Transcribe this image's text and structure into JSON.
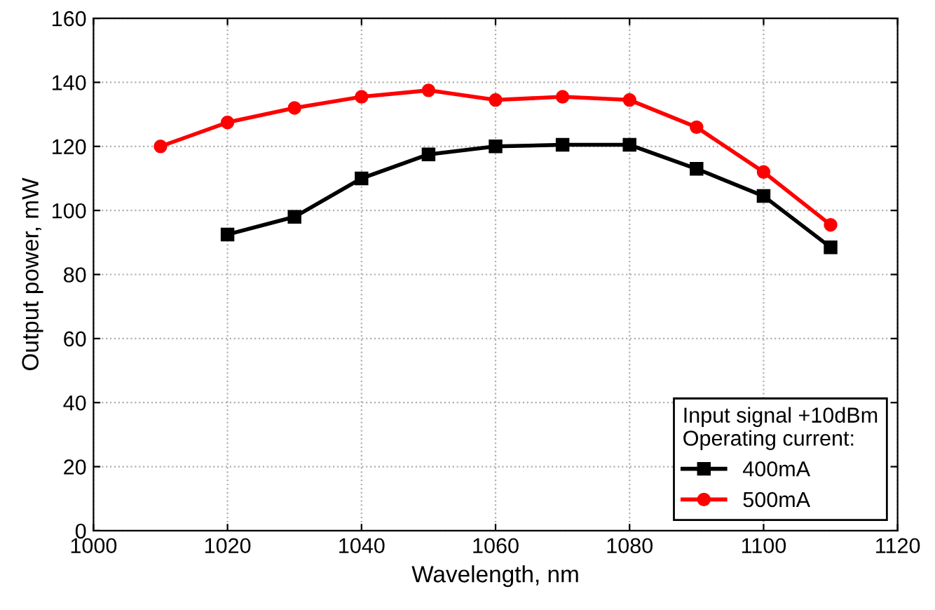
{
  "chart_data": {
    "type": "line",
    "xlabel": "Wavelength, nm",
    "ylabel": "Output power, mW",
    "legend_title": "Input signal +10dBm\nOperating current:",
    "series": [
      {
        "name": "400mA",
        "color": "#000000",
        "marker": "square",
        "x": [
          1020,
          1030,
          1040,
          1050,
          1060,
          1070,
          1080,
          1090,
          1100,
          1110
        ],
        "values": [
          92.5,
          98,
          110,
          117.5,
          120,
          120.5,
          120.5,
          113,
          104.5,
          88.5
        ]
      },
      {
        "name": "500mA",
        "color": "#ff0000",
        "marker": "circle",
        "x": [
          1010,
          1020,
          1030,
          1040,
          1050,
          1060,
          1070,
          1080,
          1090,
          1100,
          1110
        ],
        "values": [
          120,
          127.5,
          132,
          135.5,
          137.5,
          134.5,
          135.5,
          134.5,
          126,
          112,
          95.5
        ]
      }
    ],
    "xlim": [
      1000,
      1120
    ],
    "xticks": [
      1000,
      1020,
      1040,
      1060,
      1080,
      1100,
      1120
    ],
    "ylim": [
      0,
      160
    ],
    "yticks": [
      0,
      20,
      40,
      60,
      80,
      100,
      120,
      140,
      160
    ],
    "grid": true,
    "legend": "bottom right",
    "line_style": "solid"
  }
}
